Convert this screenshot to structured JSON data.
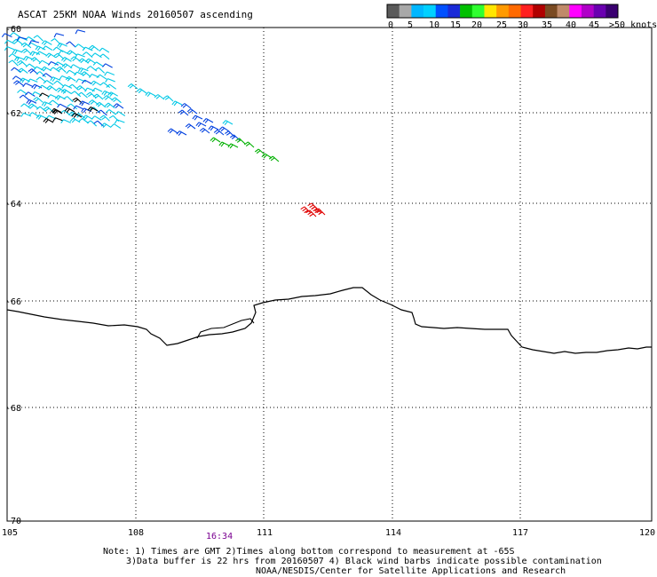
{
  "title": "ASCAT 25KM NOAA Winds 20160507 ascending",
  "legend": {
    "segment_colors": [
      "#5a5a5a",
      "#a8a8a8",
      "#00b7ff",
      "#00d0ff",
      "#0050ff",
      "#1a2bd8",
      "#00c000",
      "#30ff30",
      "#ffe600",
      "#ff9a00",
      "#ff6a00",
      "#ff2020",
      "#b00000",
      "#7a4a22",
      "#c08a6a",
      "#ff00ff",
      "#b000c8",
      "#6a00b0",
      "#3a0070"
    ],
    "labels": [
      "0",
      "5",
      "10",
      "15",
      "20",
      "25",
      "30",
      "35",
      "40",
      "45",
      ">50 knots"
    ]
  },
  "map": {
    "lon_ticks": [
      "105",
      "108",
      "111",
      "114",
      "117",
      "120"
    ],
    "lat_ticks": [
      "-60",
      "-62",
      "-64",
      "-66",
      "-68",
      "-70"
    ]
  },
  "time_label": "16:34",
  "notes": [
    "Note: 1) Times are GMT 2)Times along bottom correspond to measurement at -65S",
    "3)Data buffer is 22 hrs from 20160507 4) Black wind barbs indicate possible contamination",
    "NOAA/NESDIS/Center for Satellite Applications and Research"
  ],
  "colors": {
    "cyan": "#00c8e6",
    "blue": "#0040e0",
    "green": "#00b000",
    "red": "#e00000",
    "black": "#000000",
    "time": "#7a0090"
  }
}
